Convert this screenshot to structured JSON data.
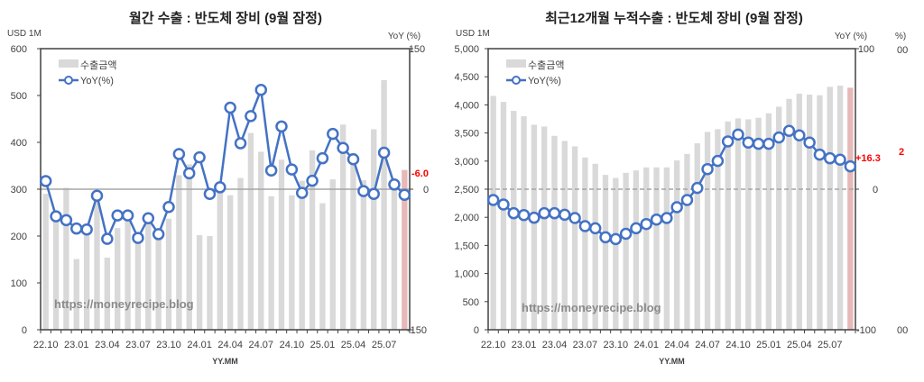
{
  "colors": {
    "bar": "#d9d9d9",
    "bar_last": "#e6b8b7",
    "line": "#4472c4",
    "zero_line": "#a6a6a6",
    "label_red": "#ff0000"
  },
  "watermark": "https://moneyrecipe.blog",
  "chart_data": [
    {
      "type": "bar+line",
      "title": "월간 수출 : 반도체 장비 (9월 잠정)",
      "ylabel": "USD 1M",
      "y2label": "YoY (%)",
      "xlabel": "YY.MM",
      "ylim": [
        0,
        600
      ],
      "yticks": [
        "0",
        "100",
        "200",
        "300",
        "400",
        "500",
        "600"
      ],
      "y2lim": [
        -150,
        150
      ],
      "y2ticks": [
        "-150",
        "0",
        "150"
      ],
      "xtick_labels": [
        "22.10",
        "23.01",
        "23.04",
        "23.07",
        "23.10",
        "24.01",
        "24.04",
        "24.07",
        "24.10",
        "25.01",
        "25.04",
        "25.07"
      ],
      "legend": [
        "수출금액",
        "YoY(%)"
      ],
      "legend_position": "top-left",
      "categories": [
        "22.10",
        "22.11",
        "22.12",
        "23.01",
        "23.02",
        "23.03",
        "23.04",
        "23.05",
        "23.06",
        "23.07",
        "23.08",
        "23.09",
        "23.10",
        "23.11",
        "23.12",
        "24.01",
        "24.02",
        "24.03",
        "24.04",
        "24.05",
        "24.06",
        "24.07",
        "24.08",
        "24.09",
        "24.10",
        "24.11",
        "24.12",
        "25.01",
        "25.02",
        "25.03",
        "25.04",
        "25.05",
        "25.06",
        "25.07",
        "25.08",
        "25.09"
      ],
      "series": [
        {
          "name": "수출금액",
          "axis": "left",
          "values": [
            290,
            235,
            303,
            151,
            210,
            280,
            154,
            217,
            240,
            200,
            230,
            200,
            237,
            330,
            353,
            202,
            200,
            300,
            287,
            324,
            420,
            380,
            285,
            363,
            287,
            318,
            383,
            270,
            321,
            438,
            377,
            319,
            428,
            533,
            300,
            341
          ]
        },
        {
          "name": "YoY(%)",
          "axis": "right",
          "values": [
            8.7,
            -29,
            -33,
            -42,
            -43,
            -7,
            -53,
            -28,
            -28,
            -52,
            -31,
            -48,
            -19,
            37.5,
            17,
            34,
            -5,
            2,
            87,
            49,
            78,
            106,
            20,
            67,
            21,
            -4,
            9,
            33,
            59,
            44,
            32,
            -2,
            -5,
            39,
            5,
            -6.0
          ]
        }
      ],
      "annotation": "-6.0"
    },
    {
      "type": "bar+line",
      "title": "최근12개월 누적수출 : 반도체 장비 (9월 잠정)",
      "ylabel": "USD 1M",
      "y2label": "YoY (%)",
      "xlabel": "YY.MM",
      "ylim": [
        0,
        5000
      ],
      "yticks": [
        "0",
        "500",
        "1,000",
        "1,500",
        "2,000",
        "2,500",
        "3,000",
        "3,500",
        "4,000",
        "4,500",
        "5,000"
      ],
      "y2lim": [
        -100,
        100
      ],
      "y2ticks": [
        "-100",
        "0",
        "100"
      ],
      "xtick_labels": [
        "22.10",
        "23.01",
        "23.04",
        "23.07",
        "23.10",
        "24.01",
        "24.04",
        "24.07",
        "24.10",
        "25.01",
        "25.04",
        "25.07"
      ],
      "legend": [
        "수출금액",
        "YoY(%)"
      ],
      "legend_position": "top-left",
      "categories": [
        "22.10",
        "22.11",
        "22.12",
        "23.01",
        "23.02",
        "23.03",
        "23.04",
        "23.05",
        "23.06",
        "23.07",
        "23.08",
        "23.09",
        "23.10",
        "23.11",
        "23.12",
        "24.01",
        "24.02",
        "24.03",
        "24.04",
        "24.05",
        "24.06",
        "24.07",
        "24.08",
        "24.09",
        "24.10",
        "24.11",
        "24.12",
        "25.01",
        "25.02",
        "25.03",
        "25.04",
        "25.05",
        "25.06",
        "25.07",
        "25.08",
        "25.09"
      ],
      "series": [
        {
          "name": "수출금액",
          "axis": "left",
          "values": [
            4160,
            4053,
            3893,
            3797,
            3647,
            3615,
            3449,
            3358,
            3262,
            3064,
            2952,
            2754,
            2700,
            2791,
            2834,
            2888,
            2888,
            2888,
            3011,
            3128,
            3316,
            3519,
            3567,
            3706,
            3759,
            3743,
            3770,
            3850,
            3968,
            4107,
            4198,
            4182,
            4171,
            4321,
            4342,
            4305
          ]
        },
        {
          "name": "YoY(%)",
          "axis": "right",
          "values": [
            -7.7,
            -10.9,
            -17.1,
            -18.4,
            -20.3,
            -17.1,
            -17.1,
            -18.2,
            -20.5,
            -26.3,
            -27.8,
            -34.2,
            -35.5,
            -31.7,
            -27.8,
            -24.8,
            -21.6,
            -20.5,
            -12.8,
            -7.7,
            0.9,
            14.3,
            20.1,
            34,
            38.9,
            33.2,
            32.3,
            32.3,
            36.8,
            41.5,
            38.3,
            33.2,
            24.6,
            22,
            21,
            16.3
          ]
        }
      ],
      "annotation": "+16.3",
      "clipped_ghost_labels": [
        "%)",
        "00",
        "00",
        "2"
      ]
    }
  ]
}
